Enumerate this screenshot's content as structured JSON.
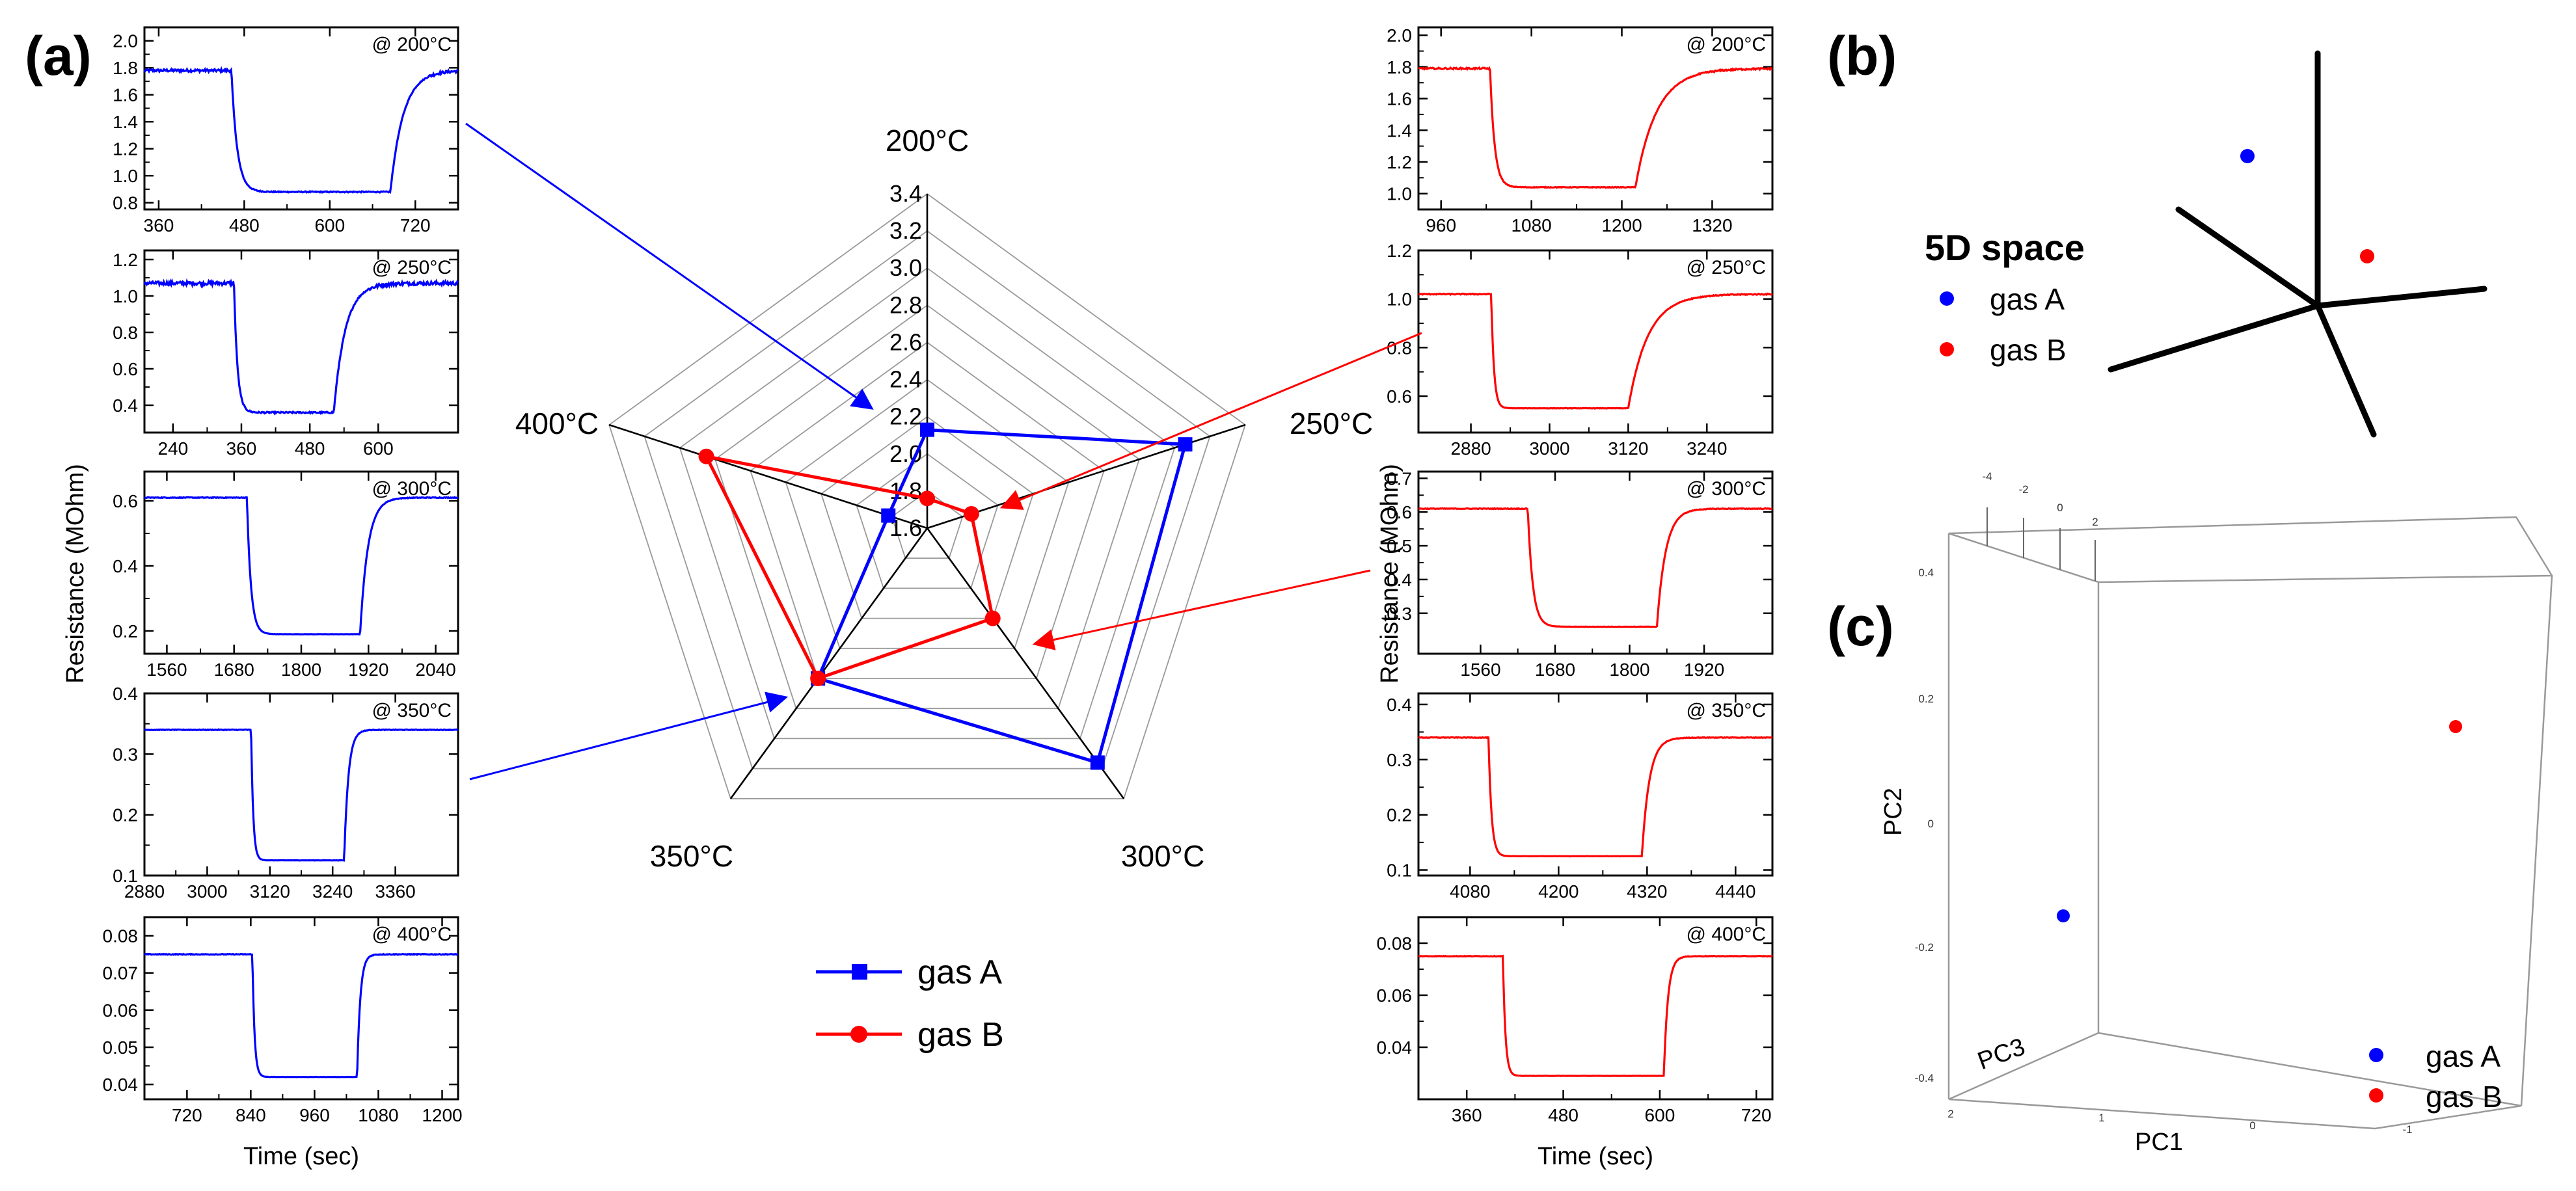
{
  "panel_labels": {
    "a": "(a)",
    "b": "(b)",
    "c": "(c)"
  },
  "colors": {
    "gas_a": "#0000ff",
    "gas_b": "#ff0000",
    "axis": "#000000",
    "grid": "#999999"
  },
  "chart_data": [
    {
      "id": "a-left",
      "type": "line",
      "series_name": "gas A",
      "color": "#0000ff",
      "ylabel": "Resistance (MOhm)",
      "xlabel": "Time (sec)",
      "panels": [
        {
          "label": "@ 200°C",
          "xlim": [
            340,
            780
          ],
          "xticks": [
            360,
            480,
            600,
            720
          ],
          "ylim": [
            0.75,
            2.1
          ],
          "yticks": [
            0.8,
            1.0,
            1.2,
            1.4,
            1.6,
            1.8,
            2.0
          ],
          "base": 1.78,
          "low": 0.88,
          "t_on": 462,
          "t_off": 685,
          "tau_fall": 8,
          "tau_rise": 18,
          "noise": 0.02
        },
        {
          "label": "@ 250°C",
          "xlim": [
            190,
            740
          ],
          "xticks": [
            240,
            360,
            480,
            600
          ],
          "ylim": [
            0.25,
            1.25
          ],
          "yticks": [
            0.4,
            0.6,
            0.8,
            1.0,
            1.2
          ],
          "base": 1.07,
          "low": 0.36,
          "t_on": 347,
          "t_off": 522,
          "tau_fall": 6,
          "tau_rise": 20,
          "noise": 0.02
        },
        {
          "label": "@ 300°C",
          "xlim": [
            1520,
            2080
          ],
          "xticks": [
            1560,
            1680,
            1800,
            1920,
            2040
          ],
          "ylim": [
            0.13,
            0.69
          ],
          "yticks": [
            0.2,
            0.4,
            0.6
          ],
          "base": 0.61,
          "low": 0.19,
          "t_on": 1703,
          "t_off": 1905,
          "tau_fall": 7,
          "tau_rise": 14,
          "noise": 0.002
        },
        {
          "label": "@ 350°C",
          "xlim": [
            2880,
            3480
          ],
          "xticks": [
            2880,
            3000,
            3120,
            3240,
            3360
          ],
          "ylim": [
            0.1,
            0.4
          ],
          "yticks": [
            0.1,
            0.2,
            0.3,
            0.4
          ],
          "base": 0.34,
          "low": 0.125,
          "t_on": 3084,
          "t_off": 3262,
          "tau_fall": 4,
          "tau_rise": 8,
          "noise": 0.001
        },
        {
          "label": "@ 400°C",
          "xlim": [
            640,
            1230
          ],
          "xticks": [
            720,
            840,
            960,
            1080,
            1200
          ],
          "ylim": [
            0.036,
            0.085
          ],
          "yticks": [
            0.04,
            0.05,
            0.06,
            0.07,
            0.08
          ],
          "base": 0.075,
          "low": 0.042,
          "t_on": 843,
          "t_off": 1040,
          "tau_fall": 4,
          "tau_rise": 6,
          "noise": 0.0002
        }
      ]
    },
    {
      "id": "a-right",
      "type": "line",
      "series_name": "gas B",
      "color": "#ff0000",
      "ylabel": "Resistance (MOhm)",
      "xlabel": "Time (sec)",
      "panels": [
        {
          "label": "@ 200°C",
          "xlim": [
            930,
            1400
          ],
          "xticks": [
            960,
            1080,
            1200,
            1320
          ],
          "ylim": [
            0.9,
            2.05
          ],
          "yticks": [
            1.0,
            1.2,
            1.4,
            1.6,
            1.8,
            2.0
          ],
          "base": 1.79,
          "low": 1.04,
          "t_on": 1025,
          "t_off": 1218,
          "tau_fall": 6,
          "tau_rise": 28,
          "noise": 0.01
        },
        {
          "label": "@ 250°C",
          "xlim": [
            2800,
            3340
          ],
          "xticks": [
            2880,
            3000,
            3120,
            3240
          ],
          "ylim": [
            0.45,
            1.2
          ],
          "yticks": [
            0.6,
            0.8,
            1.0,
            1.2
          ],
          "base": 1.02,
          "low": 0.55,
          "t_on": 2911,
          "t_off": 3120,
          "tau_fall": 4,
          "tau_rise": 30,
          "noise": 0.004
        },
        {
          "label": "@ 300°C",
          "xlim": [
            1460,
            2030
          ],
          "xticks": [
            1560,
            1680,
            1800,
            1920
          ],
          "ylim": [
            0.18,
            0.72
          ],
          "yticks": [
            0.3,
            0.4,
            0.5,
            0.6,
            0.7
          ],
          "base": 0.61,
          "low": 0.26,
          "t_on": 1636,
          "t_off": 1844,
          "tau_fall": 8,
          "tau_rise": 14,
          "noise": 0.002
        },
        {
          "label": "@ 350°C",
          "xlim": [
            4010,
            4490
          ],
          "xticks": [
            4080,
            4200,
            4320,
            4440
          ],
          "ylim": [
            0.09,
            0.42
          ],
          "yticks": [
            0.1,
            0.2,
            0.3,
            0.4
          ],
          "base": 0.34,
          "low": 0.125,
          "t_on": 4105,
          "t_off": 4313,
          "tau_fall": 4,
          "tau_rise": 10,
          "noise": 0.001
        },
        {
          "label": "@ 400°C",
          "xlim": [
            300,
            740
          ],
          "xticks": [
            360,
            480,
            600,
            720
          ],
          "ylim": [
            0.02,
            0.09
          ],
          "yticks": [
            0.04,
            0.06,
            0.08
          ],
          "base": 0.075,
          "low": 0.029,
          "t_on": 405,
          "t_off": 605,
          "tau_fall": 3,
          "tau_rise": 5,
          "noise": 0.0002
        }
      ]
    },
    {
      "id": "a-radar",
      "type": "radar",
      "axes": [
        "200°C",
        "250°C",
        "300°C",
        "350°C",
        "400°C"
      ],
      "rmin": 1.6,
      "rmax": 3.4,
      "rticks": [
        1.6,
        1.8,
        2.0,
        2.2,
        2.4,
        2.6,
        2.8,
        3.0,
        3.2,
        3.4
      ],
      "series": [
        {
          "name": "gas A",
          "color": "#0000ff",
          "marker": "square",
          "values": [
            2.13,
            3.06,
            3.16,
            2.6,
            1.82
          ]
        },
        {
          "name": "gas B",
          "color": "#ff0000",
          "marker": "circle",
          "values": [
            1.76,
            1.85,
            2.2,
            2.6,
            2.85
          ]
        }
      ],
      "legend": [
        {
          "name": "gas A",
          "color": "#0000ff",
          "marker": "square"
        },
        {
          "name": "gas B",
          "color": "#ff0000",
          "marker": "circle"
        }
      ]
    },
    {
      "id": "b",
      "type": "scatter",
      "title": "5D space",
      "points": [
        {
          "name": "gas A",
          "color": "#0000ff"
        },
        {
          "name": "gas B",
          "color": "#ff0000"
        }
      ],
      "legend": [
        {
          "name": "gas A",
          "color": "#0000ff"
        },
        {
          "name": "gas B",
          "color": "#ff0000"
        }
      ]
    },
    {
      "id": "c",
      "type": "scatter",
      "axes": {
        "x": "PC1",
        "y": "PC2",
        "z": "PC3"
      },
      "pc1_ticks": [
        "2",
        "1",
        "0",
        "-1"
      ],
      "pc2_ticks": [
        "0.4",
        "0.2",
        "0",
        "-0.2",
        "-0.4"
      ],
      "pc3_ticks": [
        "-4",
        "-2",
        "0",
        "2"
      ],
      "points": [
        {
          "name": "gas A",
          "color": "#0000ff",
          "pc1": 1.7,
          "pc2": -0.15,
          "pc3": -1.2
        },
        {
          "name": "gas B",
          "color": "#ff0000",
          "pc1": -1.3,
          "pc2": 0.15,
          "pc3": 0.9
        }
      ],
      "legend": [
        {
          "name": "gas A",
          "color": "#0000ff"
        },
        {
          "name": "gas B",
          "color": "#ff0000"
        }
      ]
    }
  ]
}
